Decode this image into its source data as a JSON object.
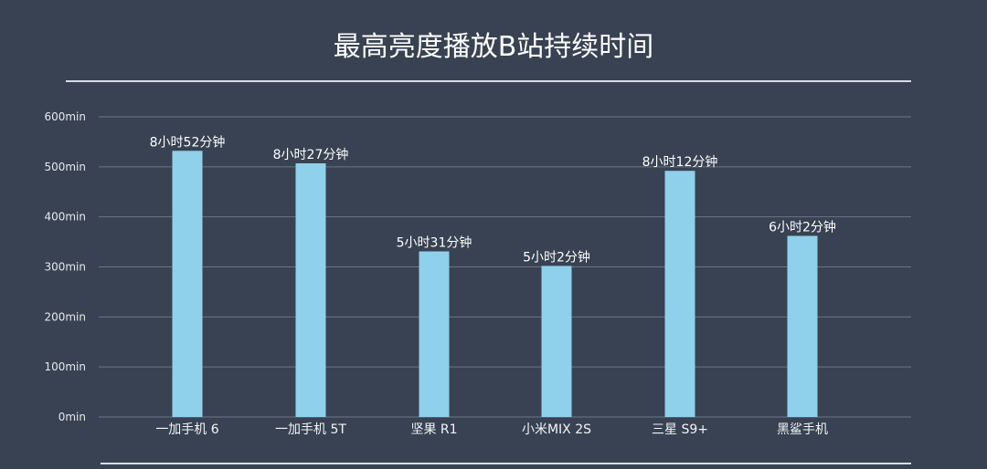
{
  "chart_data": {
    "type": "bar",
    "title": "最高亮度播放B站持续时间",
    "xlabel": "",
    "ylabel": "",
    "ylim": [
      0,
      600
    ],
    "yticks": [
      "0min",
      "100min",
      "200min",
      "300min",
      "400min",
      "500min",
      "600min"
    ],
    "ytick_values": [
      0,
      100,
      200,
      300,
      400,
      500,
      600
    ],
    "grid": true,
    "categories": [
      "一加手机 6",
      "一加手机 5T",
      "坚果 R1",
      "小米MIX 2S",
      "三星 S9+",
      "黑鲨手机"
    ],
    "values": [
      532,
      507,
      331,
      302,
      492,
      362
    ],
    "data_labels": [
      "8小时52分钟",
      "8小时27分钟",
      "5小时31分钟",
      "5小时2分钟",
      "8小时12分钟",
      "6小时2分钟"
    ],
    "bar_color": "#8fd0ea",
    "grid_color": "#6b7585",
    "background_color": "#384252"
  }
}
